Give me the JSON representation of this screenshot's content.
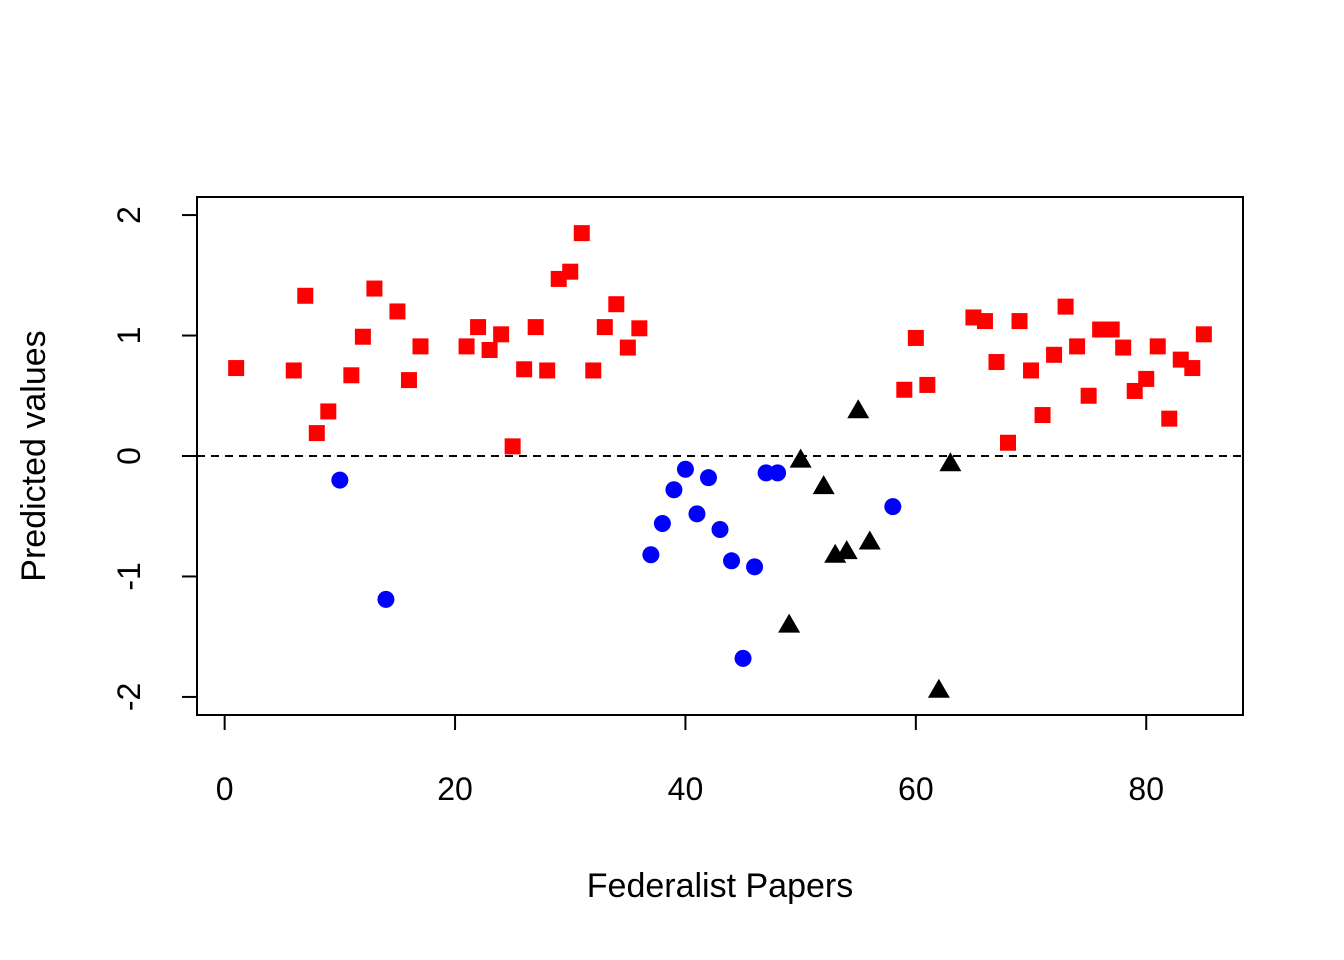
{
  "chart_data": {
    "type": "scatter",
    "title": "",
    "xlabel": "Federalist Papers",
    "ylabel": "Predicted values",
    "xlim": [
      -2.4,
      88.4
    ],
    "ylim": [
      -2.15,
      2.15
    ],
    "xticks": [
      0,
      20,
      40,
      60,
      80
    ],
    "yticks": [
      -2,
      -1,
      0,
      1,
      2
    ],
    "xtick_labels": [
      "0",
      "20",
      "40",
      "60",
      "80"
    ],
    "ytick_labels": [
      "-2",
      "-1",
      "0",
      "1",
      "2"
    ],
    "grid": false,
    "legend": "none",
    "reference_line": {
      "y": 0,
      "style": "dashed",
      "color": "#000000"
    },
    "series": [
      {
        "marker": "square",
        "color": "#ff0000",
        "points": [
          [
            1,
            0.73
          ],
          [
            6,
            0.71
          ],
          [
            7,
            1.33
          ],
          [
            8,
            0.19
          ],
          [
            9,
            0.37
          ],
          [
            11,
            0.67
          ],
          [
            12,
            0.99
          ],
          [
            13,
            1.39
          ],
          [
            15,
            1.2
          ],
          [
            16,
            0.63
          ],
          [
            17,
            0.91
          ],
          [
            21,
            0.91
          ],
          [
            22,
            1.07
          ],
          [
            23,
            0.88
          ],
          [
            24,
            1.01
          ],
          [
            25,
            0.08
          ],
          [
            26,
            0.72
          ],
          [
            27,
            1.07
          ],
          [
            28,
            0.71
          ],
          [
            29,
            1.47
          ],
          [
            30,
            1.53
          ],
          [
            31,
            1.85
          ],
          [
            32,
            0.71
          ],
          [
            33,
            1.07
          ],
          [
            34,
            1.26
          ],
          [
            35,
            0.9
          ],
          [
            36,
            1.06
          ],
          [
            59,
            0.55
          ],
          [
            60,
            0.98
          ],
          [
            61,
            0.59
          ],
          [
            65,
            1.15
          ],
          [
            66,
            1.12
          ],
          [
            67,
            0.78
          ],
          [
            68,
            0.11
          ],
          [
            69,
            1.12
          ],
          [
            70,
            0.71
          ],
          [
            71,
            0.34
          ],
          [
            72,
            0.84
          ],
          [
            73,
            1.24
          ],
          [
            74,
            0.91
          ],
          [
            75,
            0.5
          ],
          [
            76,
            1.05
          ],
          [
            77,
            1.05
          ],
          [
            78,
            0.9
          ],
          [
            79,
            0.54
          ],
          [
            80,
            0.64
          ],
          [
            81,
            0.91
          ],
          [
            82,
            0.31
          ],
          [
            83,
            0.8
          ],
          [
            84,
            0.73
          ],
          [
            85,
            1.01
          ]
        ]
      },
      {
        "marker": "circle",
        "color": "#0000ff",
        "points": [
          [
            10,
            -0.2
          ],
          [
            14,
            -1.19
          ],
          [
            37,
            -0.82
          ],
          [
            38,
            -0.56
          ],
          [
            39,
            -0.28
          ],
          [
            40,
            -0.11
          ],
          [
            41,
            -0.48
          ],
          [
            42,
            -0.18
          ],
          [
            43,
            -0.61
          ],
          [
            44,
            -0.87
          ],
          [
            45,
            -1.68
          ],
          [
            46,
            -0.92
          ],
          [
            47,
            -0.14
          ],
          [
            48,
            -0.14
          ],
          [
            58,
            -0.42
          ]
        ]
      },
      {
        "marker": "triangle",
        "color": "#000000",
        "points": [
          [
            49,
            -1.4
          ],
          [
            50,
            -0.03
          ],
          [
            52,
            -0.25
          ],
          [
            53,
            -0.82
          ],
          [
            54,
            -0.79
          ],
          [
            55,
            0.38
          ],
          [
            56,
            -0.71
          ],
          [
            62,
            -1.94
          ],
          [
            63,
            -0.06
          ]
        ]
      }
    ]
  }
}
